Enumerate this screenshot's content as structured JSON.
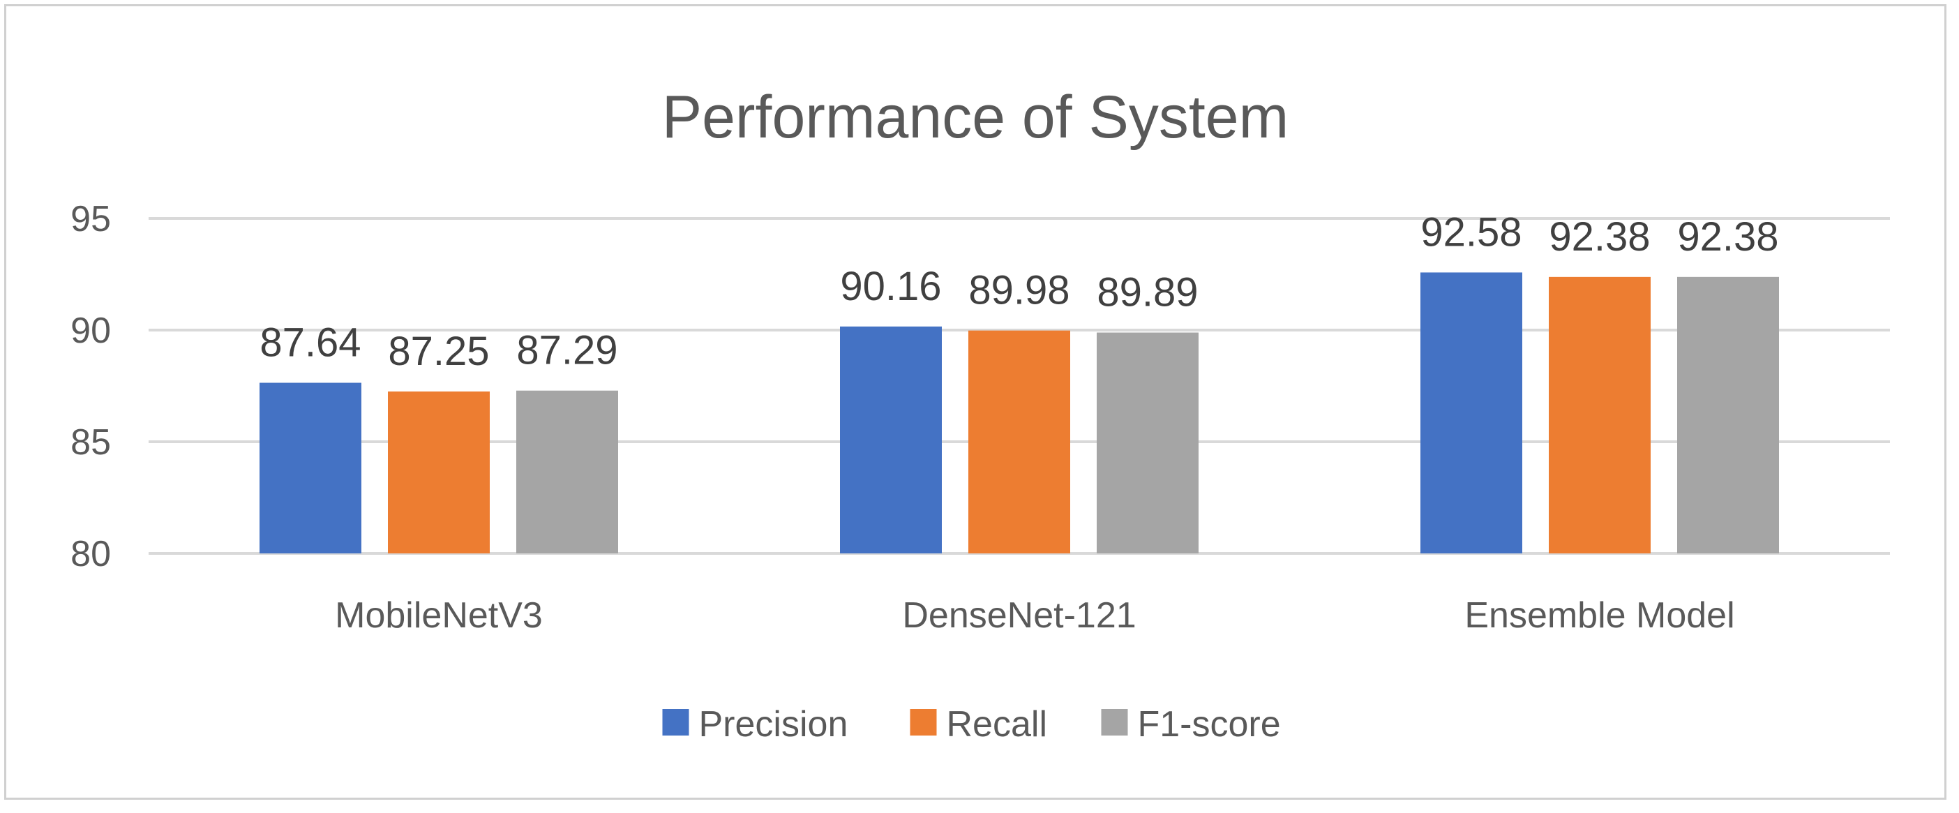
{
  "chart_data": {
    "type": "bar",
    "title": "Performance of System",
    "categories": [
      "MobileNetV3",
      "DenseNet-121",
      "Ensemble Model"
    ],
    "series": [
      {
        "name": "Precision",
        "values": [
          87.64,
          90.16,
          92.58
        ],
        "color": "#4472c4"
      },
      {
        "name": "Recall",
        "values": [
          87.25,
          89.98,
          92.38
        ],
        "color": "#ed7d31"
      },
      {
        "name": "F1-score",
        "values": [
          87.29,
          89.89,
          92.38
        ],
        "color": "#a5a5a5"
      }
    ],
    "ylim": [
      80,
      95
    ],
    "yticks": [
      80,
      85,
      90,
      95
    ],
    "grid": true,
    "legend": "bottom",
    "data_labels": true
  }
}
